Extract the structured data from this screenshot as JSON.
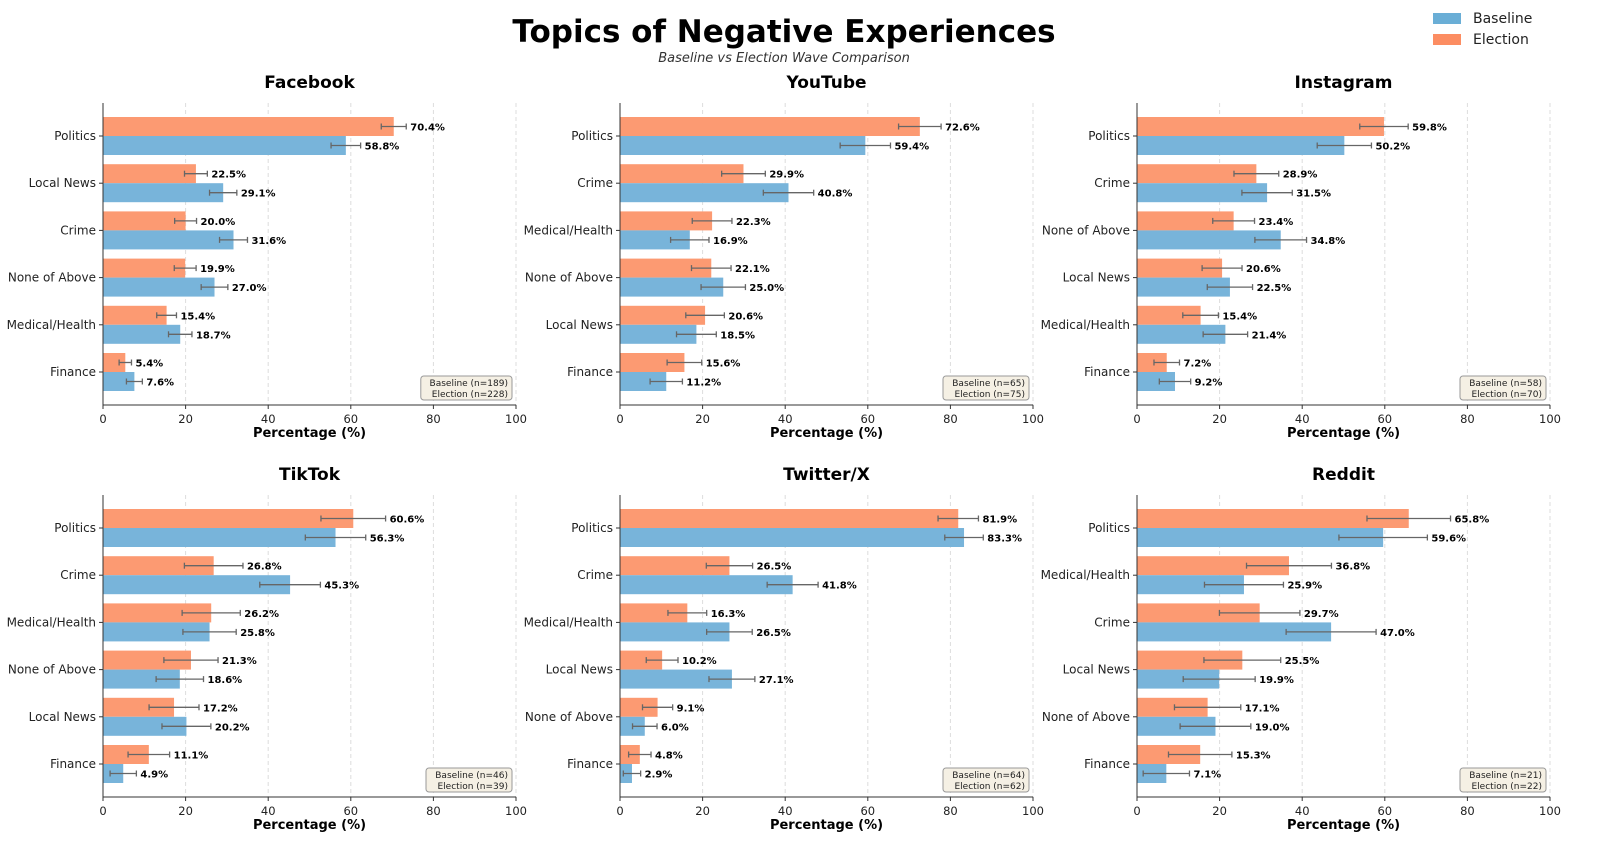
{
  "colors": {
    "baseline": "#78b4da",
    "election": "#fc9a72"
  },
  "chart_data": {
    "type": "bar",
    "orientation": "horizontal",
    "title": "Topics of Negative Experiences",
    "subtitle": "Baseline vs Election Wave Comparison",
    "legend": {
      "position": "top-right",
      "entries": [
        "Baseline",
        "Election"
      ]
    },
    "xlabel": "Percentage (%)",
    "xlim": [
      0,
      100
    ],
    "xticks": [
      "0",
      "20",
      "40",
      "60",
      "80",
      "100"
    ],
    "grid": "x dashed",
    "panels": [
      {
        "title": "Facebook",
        "n_baseline": 189,
        "n_election": 228,
        "n_label": [
          "Baseline (n=189)",
          "Election (n=228)"
        ],
        "categories": [
          "Politics",
          "Local News",
          "Crime",
          "None of Above",
          "Medical/Health",
          "Finance"
        ],
        "series": [
          {
            "name": "Election",
            "values": [
              70.4,
              22.5,
              20.0,
              19.9,
              15.4,
              5.4
            ]
          },
          {
            "name": "Baseline",
            "values": [
              58.8,
              29.1,
              31.6,
              27.0,
              18.7,
              7.6
            ]
          }
        ]
      },
      {
        "title": "YouTube",
        "n_baseline": 65,
        "n_election": 75,
        "n_label": [
          "Baseline (n=65)",
          "Election (n=75)"
        ],
        "categories": [
          "Politics",
          "Crime",
          "Medical/Health",
          "None of Above",
          "Local News",
          "Finance"
        ],
        "series": [
          {
            "name": "Election",
            "values": [
              72.6,
              29.9,
              22.3,
              22.1,
              20.6,
              15.6
            ]
          },
          {
            "name": "Baseline",
            "values": [
              59.4,
              40.8,
              16.9,
              25.0,
              18.5,
              11.2
            ]
          }
        ]
      },
      {
        "title": "Instagram",
        "n_baseline": 58,
        "n_election": 70,
        "n_label": [
          "Baseline (n=58)",
          "Election (n=70)"
        ],
        "categories": [
          "Politics",
          "Crime",
          "None of Above",
          "Local News",
          "Medical/Health",
          "Finance"
        ],
        "series": [
          {
            "name": "Election",
            "values": [
              59.8,
              28.9,
              23.4,
              20.6,
              15.4,
              7.2
            ]
          },
          {
            "name": "Baseline",
            "values": [
              50.2,
              31.5,
              34.8,
              22.5,
              21.4,
              9.2
            ]
          }
        ]
      },
      {
        "title": "TikTok",
        "n_baseline": 46,
        "n_election": 39,
        "n_label": [
          "Baseline (n=46)",
          "Election (n=39)"
        ],
        "categories": [
          "Politics",
          "Crime",
          "Medical/Health",
          "None of Above",
          "Local News",
          "Finance"
        ],
        "series": [
          {
            "name": "Election",
            "values": [
              60.6,
              26.8,
              26.2,
              21.3,
              17.2,
              11.1
            ]
          },
          {
            "name": "Baseline",
            "values": [
              56.3,
              45.3,
              25.8,
              18.6,
              20.2,
              4.9
            ]
          }
        ]
      },
      {
        "title": "Twitter/X",
        "n_baseline": 64,
        "n_election": 62,
        "n_label": [
          "Baseline (n=64)",
          "Election (n=62)"
        ],
        "categories": [
          "Politics",
          "Crime",
          "Medical/Health",
          "Local News",
          "None of Above",
          "Finance"
        ],
        "series": [
          {
            "name": "Election",
            "values": [
              81.9,
              26.5,
              16.3,
              10.2,
              9.1,
              4.8
            ]
          },
          {
            "name": "Baseline",
            "values": [
              83.3,
              41.8,
              26.5,
              27.1,
              6.0,
              2.9
            ]
          }
        ]
      },
      {
        "title": "Reddit",
        "n_baseline": 21,
        "n_election": 22,
        "n_label": [
          "Baseline (n=21)",
          "Election (n=22)"
        ],
        "categories": [
          "Politics",
          "Medical/Health",
          "Crime",
          "Local News",
          "None of Above",
          "Finance"
        ],
        "series": [
          {
            "name": "Election",
            "values": [
              65.8,
              36.8,
              29.7,
              25.5,
              17.1,
              15.3
            ]
          },
          {
            "name": "Baseline",
            "values": [
              59.6,
              25.9,
              47.0,
              19.9,
              19.0,
              7.1
            ]
          }
        ]
      }
    ]
  }
}
